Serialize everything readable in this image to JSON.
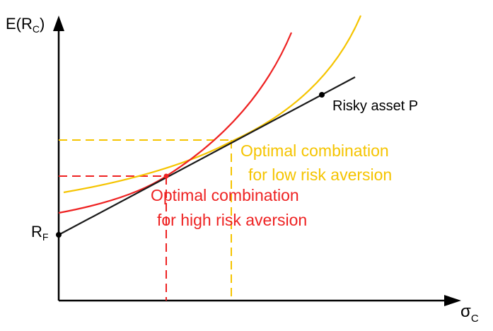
{
  "labels": {
    "y_axis_main": "E(R",
    "y_axis_sub": "C",
    "y_axis_close": ")",
    "x_axis_main": "σ",
    "x_axis_sub": "C",
    "rf_main": "R",
    "rf_sub": "F",
    "risky_asset": "Risky asset P",
    "low_line1": "Optimal combination",
    "low_line2": "for low risk aversion",
    "high_line1": "Optimal combination",
    "high_line2": "for high risk aversion"
  },
  "colors": {
    "axis": "#000000",
    "capital_allocation_line": "#1a1a1a",
    "high_risk_aversion": "#ee2222",
    "low_risk_aversion": "#f5c400"
  }
}
